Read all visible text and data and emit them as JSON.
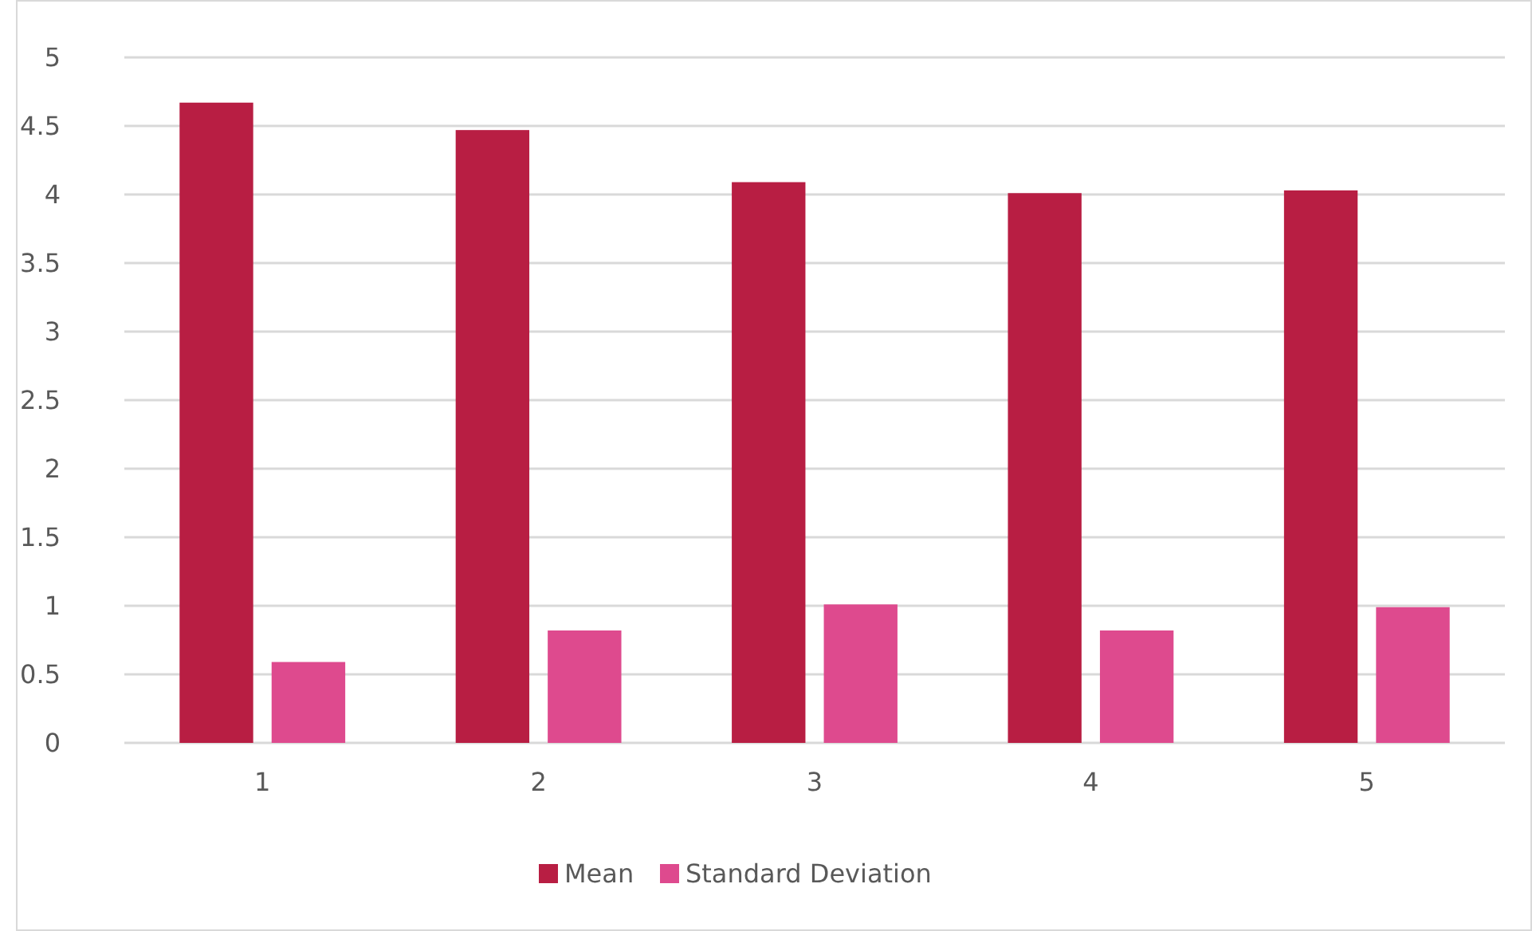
{
  "chart_data": {
    "type": "bar",
    "categories": [
      "1",
      "2",
      "3",
      "4",
      "5"
    ],
    "series": [
      {
        "name": "Mean",
        "color": "#b81e43",
        "values": [
          4.67,
          4.47,
          4.09,
          4.01,
          4.03
        ]
      },
      {
        "name": "Standard Deviation",
        "color": "#de4a8e",
        "values": [
          0.59,
          0.82,
          1.01,
          0.82,
          0.99
        ]
      }
    ],
    "ylim": [
      0,
      5
    ],
    "yticks": [
      0,
      0.5,
      1,
      1.5,
      2,
      2.5,
      3,
      3.5,
      4,
      4.5,
      5
    ],
    "grid": "y",
    "legend": "bottom"
  }
}
